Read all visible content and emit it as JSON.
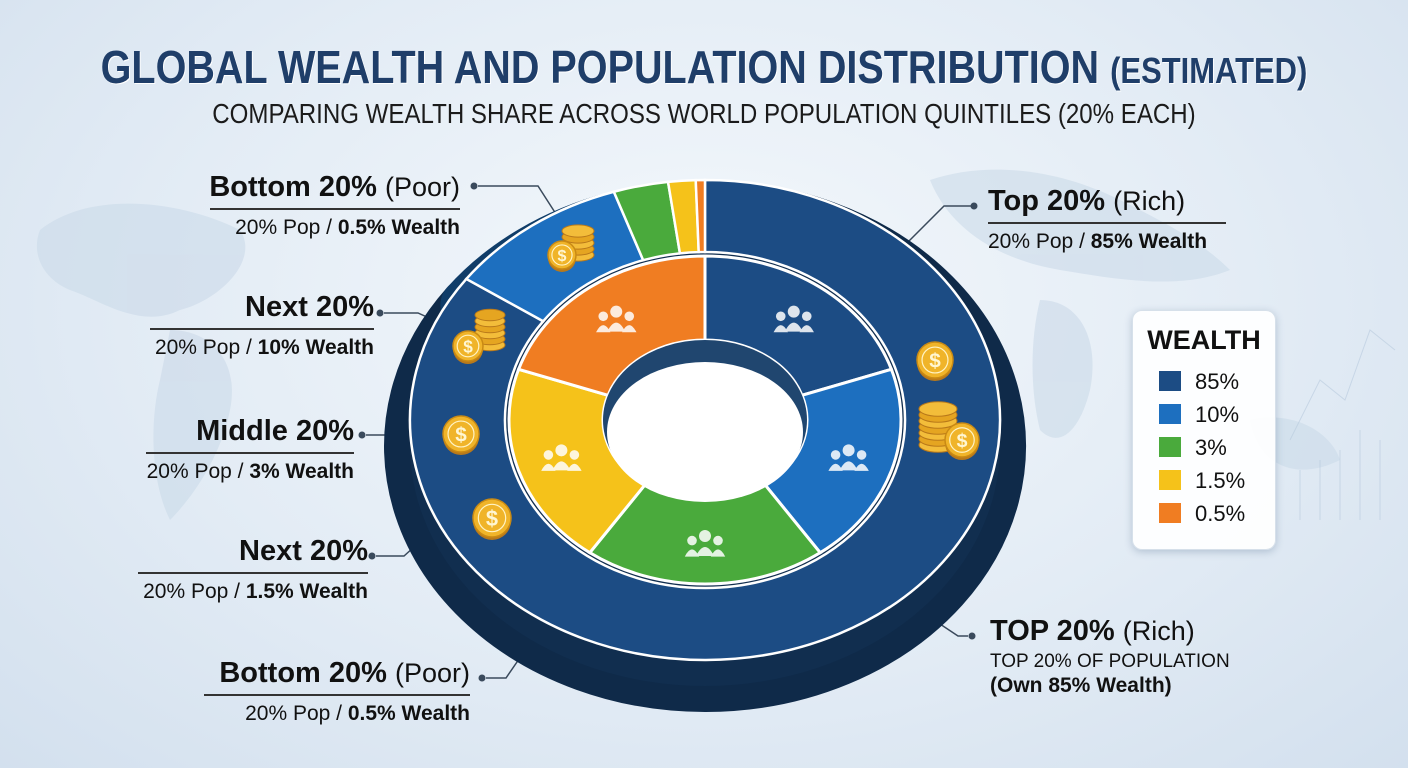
{
  "title": "GLOBAL WEALTH AND POPULATION DISTRIBUTION",
  "title_suffix": "(ESTIMATED)",
  "subtitle": "COMPARING WEALTH SHARE ACROSS WORLD POPULATION QUINTILES (20% EACH)",
  "chart_data": {
    "type": "pie",
    "variant": "donut",
    "slices": [
      {
        "label": "Top 20%",
        "value": 85,
        "color": "#1c4c84"
      },
      {
        "label": "Next 20%",
        "value": 10,
        "color": "#1d6fbf"
      },
      {
        "label": "Middle 20%",
        "value": 3,
        "color": "#4aaa3c"
      },
      {
        "label": "Next 20%",
        "value": 1.5,
        "color": "#f5c21a"
      },
      {
        "label": "Bottom 20%",
        "value": 0.5,
        "color": "#f07d22"
      }
    ],
    "inner_ring_population_share": [
      20,
      20,
      20,
      20,
      20
    ],
    "legend": {
      "title": "WEALTH",
      "placement": "right",
      "items": [
        {
          "label": "85%",
          "color": "#1c4c84"
        },
        {
          "label": "10%",
          "color": "#1d6fbf"
        },
        {
          "label": "3%",
          "color": "#4aaa3c"
        },
        {
          "label": "1.5%",
          "color": "#f5c21a"
        },
        {
          "label": "0.5%",
          "color": "#f07d22"
        }
      ]
    }
  },
  "labels": {
    "top_right": {
      "head": "Top 20%",
      "qual": "(Rich)",
      "sub_pre": "20% Pop / ",
      "sub_bold": "85% Wealth"
    },
    "bottom_top_left": {
      "head": "Bottom 20%",
      "qual": "(Poor)",
      "sub_pre": "20% Pop / ",
      "sub_bold": "0.5% Wealth"
    },
    "next_upper": {
      "head": "Next 20%",
      "qual": "",
      "sub_pre": "20% Pop / ",
      "sub_bold": "10% Wealth"
    },
    "middle": {
      "head": "Middle 20%",
      "qual": "",
      "sub_pre": "20% Pop / ",
      "sub_bold": "3% Wealth"
    },
    "next_lower": {
      "head": "Next 20%",
      "qual": "",
      "sub_pre": "20% Pop / ",
      "sub_bold": "1.5% Wealth"
    },
    "bottom_lower": {
      "head": "Bottom 20%",
      "qual": "(Poor)",
      "sub_pre": "20% Pop / ",
      "sub_bold": "0.5% Wealth"
    },
    "top_lower": {
      "head": "TOP 20%",
      "qual": "(Rich)",
      "sub_line1": "TOP 20% OF POPULATION",
      "sub_line2": "(Own 85% Wealth)"
    }
  },
  "colors": {
    "title": "#1f3e69",
    "dark_blue": "#1c4c84",
    "mid_blue": "#1d6fbf",
    "green": "#4aaa3c",
    "yellow": "#f5c21a",
    "orange": "#f07d22",
    "coin": "#f0b429"
  },
  "icons": {
    "population": "people-group-icon",
    "wealth": "coin-stack-icon"
  }
}
